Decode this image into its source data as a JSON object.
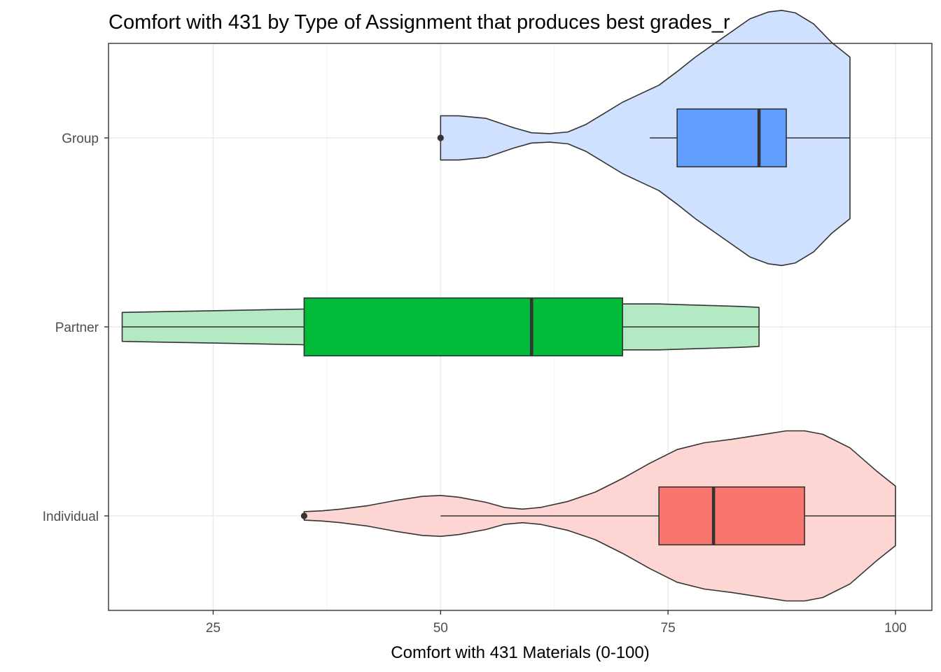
{
  "chart_data": {
    "type": "violin",
    "title": "Comfort with 431 by Type of Assignment that produces best grades_r",
    "xlabel": "Comfort with 431 Materials (0-100)",
    "ylabel": "",
    "xlim": [
      13.5,
      104
    ],
    "x_ticks": [
      25,
      50,
      75,
      100
    ],
    "x_tick_labels": [
      "25",
      "50",
      "75",
      "100"
    ],
    "categories": [
      "Group",
      "Partner",
      "Individual"
    ],
    "legend": "none",
    "grid": true,
    "series": [
      {
        "category": "Group",
        "fill_color": "#619CFF",
        "violin_fill": "#D0E1FF",
        "violin_profile": [
          [
            50,
            0.26
          ],
          [
            52,
            0.26
          ],
          [
            55,
            0.23
          ],
          [
            58,
            0.12
          ],
          [
            60,
            0.06
          ],
          [
            62,
            0.05
          ],
          [
            64,
            0.07
          ],
          [
            66,
            0.16
          ],
          [
            68,
            0.29
          ],
          [
            70,
            0.42
          ],
          [
            72,
            0.52
          ],
          [
            74,
            0.62
          ],
          [
            76,
            0.78
          ],
          [
            78,
            0.95
          ],
          [
            80,
            1.1
          ],
          [
            82,
            1.25
          ],
          [
            84,
            1.4
          ],
          [
            86,
            1.48
          ],
          [
            87.5,
            1.5
          ],
          [
            89,
            1.47
          ],
          [
            91,
            1.34
          ],
          [
            93,
            1.12
          ],
          [
            95,
            0.95
          ]
        ],
        "box": {
          "min": 73,
          "q1": 76,
          "median": 85,
          "q3": 88,
          "max": 95
        },
        "outliers": [
          50
        ]
      },
      {
        "category": "Partner",
        "fill_color": "#00BA38",
        "violin_fill": "#B3E9C3",
        "violin_profile": [
          [
            15,
            0.17
          ],
          [
            20,
            0.18
          ],
          [
            25,
            0.19
          ],
          [
            30,
            0.2
          ],
          [
            35,
            0.21
          ],
          [
            40,
            0.22
          ],
          [
            45,
            0.23
          ],
          [
            50,
            0.24
          ],
          [
            55,
            0.25
          ],
          [
            60,
            0.26
          ],
          [
            65,
            0.27
          ],
          [
            70,
            0.27
          ],
          [
            74,
            0.27
          ],
          [
            77,
            0.26
          ],
          [
            80,
            0.25
          ],
          [
            83,
            0.24
          ],
          [
            85,
            0.23
          ]
        ],
        "box": {
          "min": 15,
          "q1": 35,
          "median": 60,
          "q3": 70,
          "max": 85
        },
        "outliers": []
      },
      {
        "category": "Individual",
        "fill_color": "#F8766D",
        "violin_fill": "#FDD5D3",
        "violin_profile": [
          [
            35,
            0.05
          ],
          [
            37,
            0.06
          ],
          [
            39,
            0.08
          ],
          [
            42,
            0.12
          ],
          [
            45,
            0.18
          ],
          [
            48,
            0.23
          ],
          [
            50,
            0.24
          ],
          [
            52,
            0.22
          ],
          [
            55,
            0.16
          ],
          [
            57,
            0.1
          ],
          [
            59,
            0.08
          ],
          [
            61,
            0.1
          ],
          [
            64,
            0.17
          ],
          [
            67,
            0.28
          ],
          [
            70,
            0.44
          ],
          [
            73,
            0.62
          ],
          [
            76,
            0.78
          ],
          [
            79,
            0.86
          ],
          [
            82,
            0.9
          ],
          [
            85,
            0.95
          ],
          [
            88,
            1.0
          ],
          [
            90,
            1.0
          ],
          [
            92,
            0.96
          ],
          [
            95,
            0.8
          ],
          [
            98,
            0.52
          ],
          [
            100,
            0.35
          ]
        ],
        "box": {
          "min": 50,
          "q1": 74,
          "median": 80,
          "q3": 90,
          "max": 100
        },
        "outliers": [
          35
        ]
      }
    ]
  }
}
